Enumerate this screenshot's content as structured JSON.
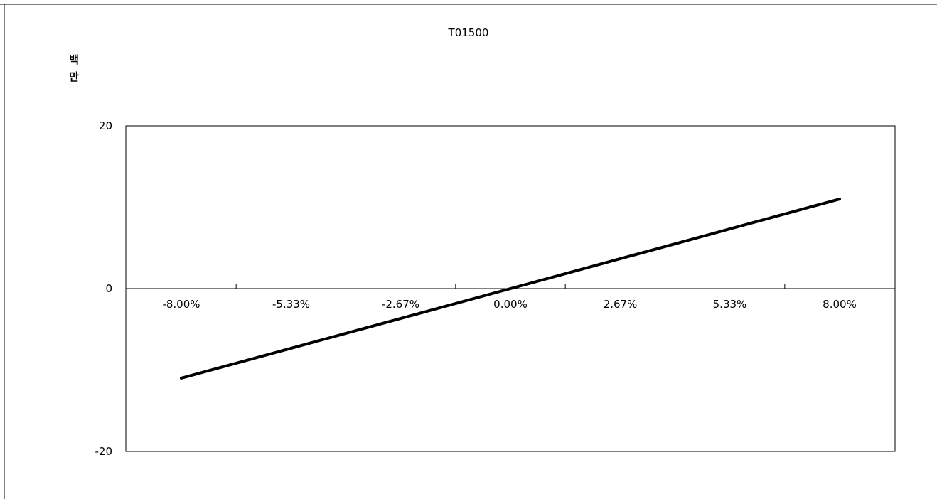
{
  "chart_data": {
    "type": "line",
    "title": "T01500",
    "ylabel": "백\n만",
    "y_unit_label_lines": [
      "백",
      "만"
    ],
    "xlabel": "",
    "x": [
      -8.0,
      -5.33,
      -2.67,
      0.0,
      2.67,
      5.33,
      8.0
    ],
    "x_tick_labels": [
      "-8.00%",
      "-5.33%",
      "-2.67%",
      "0.00%",
      "2.67%",
      "5.33%",
      "8.00%"
    ],
    "y_ticks": [
      20,
      0,
      -20
    ],
    "y_tick_labels": [
      "20",
      "0",
      "-20"
    ],
    "ylim": [
      -20,
      20
    ],
    "grid": false,
    "series": [
      {
        "values": [
          -11.0,
          -7.33,
          -3.67,
          0.0,
          3.67,
          7.33,
          11.0
        ],
        "color": "#000000"
      }
    ]
  }
}
